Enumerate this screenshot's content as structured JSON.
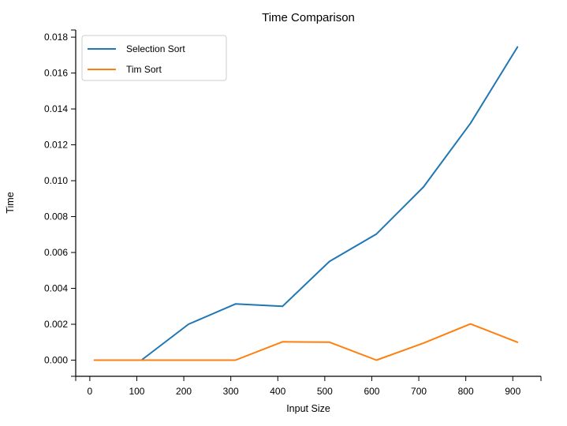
{
  "chart_data": {
    "type": "line",
    "title": "Time Comparison",
    "xlabel": "Input Size",
    "ylabel": "Time",
    "x": [
      10,
      110,
      210,
      310,
      410,
      510,
      610,
      710,
      810,
      910
    ],
    "series": [
      {
        "name": "Selection Sort",
        "color": "#1f77b4",
        "values": [
          0.0,
          0.0,
          0.002,
          0.00313,
          0.003,
          0.0055,
          0.00703,
          0.00965,
          0.0132,
          0.01745
        ]
      },
      {
        "name": "Tim Sort",
        "color": "#ff7f0e",
        "values": [
          0.0,
          0.0,
          0.0,
          0.0,
          0.00102,
          0.001,
          0.0,
          0.00095,
          0.00202,
          0.001
        ]
      }
    ],
    "xlim": [
      -30,
      960
    ],
    "ylim": [
      -0.0009,
      0.0184
    ],
    "xticks": [
      0,
      100,
      200,
      300,
      400,
      500,
      600,
      700,
      800,
      900
    ],
    "xtick_labels": [
      "0",
      "100",
      "200",
      "300",
      "400",
      "500",
      "600",
      "700",
      "800",
      "900"
    ],
    "yticks": [
      0,
      0.002,
      0.004,
      0.006,
      0.008,
      0.01,
      0.012,
      0.014,
      0.016,
      0.018
    ],
    "ytick_labels": [
      "0.000",
      "0.002",
      "0.004",
      "0.006",
      "0.008",
      "0.010",
      "0.012",
      "0.014",
      "0.016",
      "0.018"
    ],
    "grid": false,
    "legend_position": "top-left"
  }
}
